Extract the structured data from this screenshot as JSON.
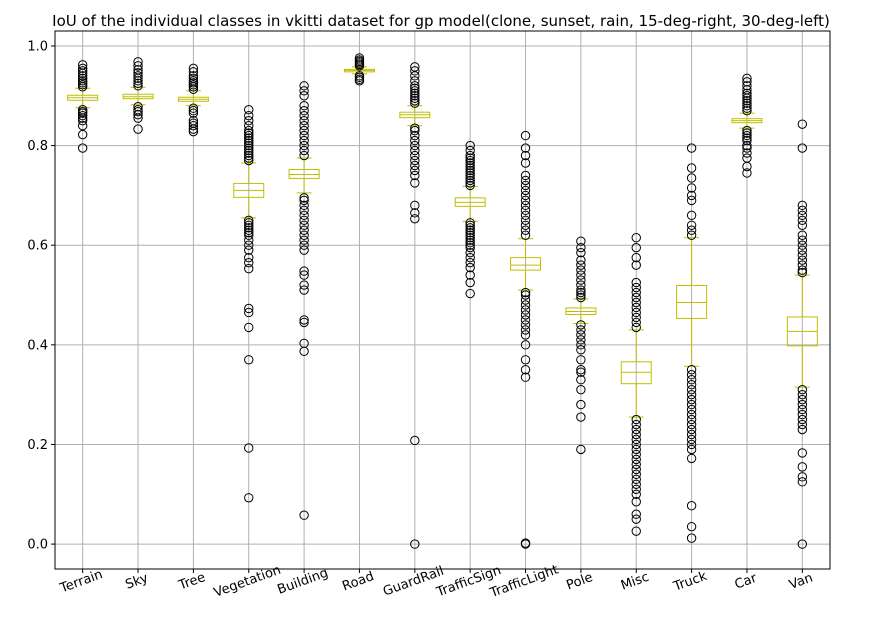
{
  "chart_data": {
    "type": "box",
    "title": "IoU of the individual classes in vkitti dataset for gp model(clone, sunset, rain, 15-deg-right, 30-deg-left)",
    "xlabel": "",
    "ylabel": "",
    "ylim": [
      -0.05,
      1.03
    ],
    "yticks": [
      "0.0",
      "0.2",
      "0.4",
      "0.6",
      "0.8",
      "1.0"
    ],
    "grid": true,
    "box_color": "#bfbf00",
    "flier_color": "#000000",
    "categories": [
      "Terrain",
      "Sky",
      "Tree",
      "Vegetation",
      "Building",
      "Road",
      "GuardRail",
      "TrafficSign",
      "TrafficLight",
      "Pole",
      "Misc",
      "Truck",
      "Car",
      "Van"
    ],
    "boxes": [
      {
        "q1": 0.891,
        "median": 0.896,
        "q3": 0.901,
        "whislo": 0.876,
        "whishi": 0.915,
        "fliers": [
          0.795,
          0.822,
          0.84,
          0.85,
          0.855,
          0.86,
          0.865,
          0.868,
          0.872,
          0.918,
          0.922,
          0.926,
          0.93,
          0.935,
          0.94,
          0.945,
          0.95,
          0.955,
          0.962
        ]
      },
      {
        "q1": 0.894,
        "median": 0.898,
        "q3": 0.903,
        "whislo": 0.882,
        "whishi": 0.917,
        "fliers": [
          0.833,
          0.855,
          0.862,
          0.868,
          0.872,
          0.878,
          0.92,
          0.925,
          0.93,
          0.935,
          0.94,
          0.946,
          0.952,
          0.96,
          0.968
        ]
      },
      {
        "q1": 0.889,
        "median": 0.893,
        "q3": 0.897,
        "whislo": 0.88,
        "whishi": 0.91,
        "fliers": [
          0.828,
          0.833,
          0.84,
          0.845,
          0.85,
          0.865,
          0.87,
          0.875,
          0.913,
          0.918,
          0.922,
          0.926,
          0.93,
          0.935,
          0.94,
          0.948,
          0.955
        ]
      },
      {
        "q1": 0.696,
        "median": 0.71,
        "q3": 0.724,
        "whislo": 0.655,
        "whishi": 0.765,
        "fliers": [
          0.093,
          0.193,
          0.37,
          0.435,
          0.465,
          0.473,
          0.553,
          0.565,
          0.575,
          0.59,
          0.6,
          0.61,
          0.62,
          0.625,
          0.63,
          0.635,
          0.64,
          0.645,
          0.65,
          0.77,
          0.775,
          0.78,
          0.785,
          0.79,
          0.795,
          0.8,
          0.805,
          0.81,
          0.815,
          0.82,
          0.825,
          0.83,
          0.84,
          0.85,
          0.86,
          0.872
        ]
      },
      {
        "q1": 0.734,
        "median": 0.742,
        "q3": 0.752,
        "whislo": 0.705,
        "whishi": 0.775,
        "fliers": [
          0.058,
          0.387,
          0.403,
          0.445,
          0.45,
          0.51,
          0.52,
          0.54,
          0.548,
          0.59,
          0.6,
          0.61,
          0.62,
          0.63,
          0.64,
          0.65,
          0.66,
          0.67,
          0.68,
          0.69,
          0.695,
          0.78,
          0.79,
          0.8,
          0.81,
          0.82,
          0.83,
          0.84,
          0.85,
          0.86,
          0.87,
          0.88,
          0.9,
          0.91,
          0.92
        ]
      },
      {
        "q1": 0.948,
        "median": 0.951,
        "q3": 0.953,
        "whislo": 0.944,
        "whishi": 0.958,
        "fliers": [
          0.93,
          0.933,
          0.937,
          0.94,
          0.96,
          0.963,
          0.966,
          0.969,
          0.972,
          0.976
        ]
      },
      {
        "q1": 0.856,
        "median": 0.862,
        "q3": 0.867,
        "whislo": 0.84,
        "whishi": 0.88,
        "fliers": [
          0.0,
          0.208,
          0.653,
          0.665,
          0.68,
          0.725,
          0.74,
          0.75,
          0.76,
          0.77,
          0.78,
          0.79,
          0.8,
          0.81,
          0.82,
          0.83,
          0.835,
          0.885,
          0.89,
          0.895,
          0.9,
          0.905,
          0.91,
          0.915,
          0.92,
          0.93,
          0.94,
          0.95,
          0.958
        ]
      },
      {
        "q1": 0.678,
        "median": 0.686,
        "q3": 0.695,
        "whislo": 0.648,
        "whishi": 0.718,
        "fliers": [
          0.503,
          0.525,
          0.54,
          0.555,
          0.565,
          0.575,
          0.585,
          0.595,
          0.6,
          0.605,
          0.61,
          0.615,
          0.62,
          0.625,
          0.63,
          0.635,
          0.64,
          0.645,
          0.72,
          0.725,
          0.73,
          0.735,
          0.74,
          0.745,
          0.75,
          0.755,
          0.76,
          0.765,
          0.77,
          0.775,
          0.78,
          0.79,
          0.8
        ]
      },
      {
        "q1": 0.55,
        "median": 0.56,
        "q3": 0.575,
        "whislo": 0.51,
        "whishi": 0.613,
        "fliers": [
          0.0,
          0.002,
          0.335,
          0.35,
          0.37,
          0.4,
          0.42,
          0.43,
          0.44,
          0.45,
          0.46,
          0.47,
          0.48,
          0.49,
          0.5,
          0.505,
          0.62,
          0.63,
          0.64,
          0.65,
          0.66,
          0.67,
          0.68,
          0.69,
          0.7,
          0.71,
          0.72,
          0.73,
          0.74,
          0.765,
          0.78,
          0.795,
          0.82
        ]
      },
      {
        "q1": 0.461,
        "median": 0.467,
        "q3": 0.474,
        "whislo": 0.443,
        "whishi": 0.492,
        "fliers": [
          0.19,
          0.255,
          0.28,
          0.31,
          0.33,
          0.345,
          0.35,
          0.37,
          0.39,
          0.4,
          0.41,
          0.42,
          0.43,
          0.44,
          0.495,
          0.5,
          0.505,
          0.51,
          0.52,
          0.53,
          0.54,
          0.55,
          0.56,
          0.57,
          0.585,
          0.595,
          0.608
        ]
      },
      {
        "q1": 0.322,
        "median": 0.345,
        "q3": 0.366,
        "whislo": 0.255,
        "whishi": 0.43,
        "fliers": [
          0.026,
          0.05,
          0.06,
          0.085,
          0.1,
          0.11,
          0.12,
          0.13,
          0.14,
          0.15,
          0.16,
          0.17,
          0.18,
          0.19,
          0.2,
          0.21,
          0.22,
          0.23,
          0.24,
          0.25,
          0.435,
          0.445,
          0.455,
          0.465,
          0.475,
          0.485,
          0.495,
          0.505,
          0.515,
          0.525,
          0.56,
          0.575,
          0.595,
          0.615
        ]
      },
      {
        "q1": 0.453,
        "median": 0.485,
        "q3": 0.519,
        "whislo": 0.357,
        "whishi": 0.615,
        "fliers": [
          0.012,
          0.035,
          0.077,
          0.172,
          0.19,
          0.2,
          0.21,
          0.22,
          0.23,
          0.24,
          0.25,
          0.26,
          0.27,
          0.28,
          0.29,
          0.3,
          0.31,
          0.32,
          0.33,
          0.34,
          0.35,
          0.62,
          0.63,
          0.64,
          0.66,
          0.69,
          0.7,
          0.715,
          0.735,
          0.755,
          0.795
        ]
      },
      {
        "q1": 0.846,
        "median": 0.85,
        "q3": 0.854,
        "whislo": 0.835,
        "whishi": 0.865,
        "fliers": [
          0.745,
          0.758,
          0.775,
          0.785,
          0.795,
          0.8,
          0.81,
          0.815,
          0.82,
          0.825,
          0.83,
          0.87,
          0.875,
          0.88,
          0.885,
          0.89,
          0.895,
          0.9,
          0.905,
          0.912,
          0.92,
          0.928,
          0.935
        ]
      },
      {
        "q1": 0.398,
        "median": 0.427,
        "q3": 0.456,
        "whislo": 0.315,
        "whishi": 0.54,
        "fliers": [
          0.0,
          0.125,
          0.135,
          0.155,
          0.183,
          0.23,
          0.24,
          0.25,
          0.26,
          0.27,
          0.28,
          0.29,
          0.3,
          0.31,
          0.545,
          0.55,
          0.56,
          0.57,
          0.58,
          0.59,
          0.6,
          0.61,
          0.62,
          0.64,
          0.65,
          0.66,
          0.67,
          0.68,
          0.795,
          0.843
        ]
      }
    ]
  }
}
